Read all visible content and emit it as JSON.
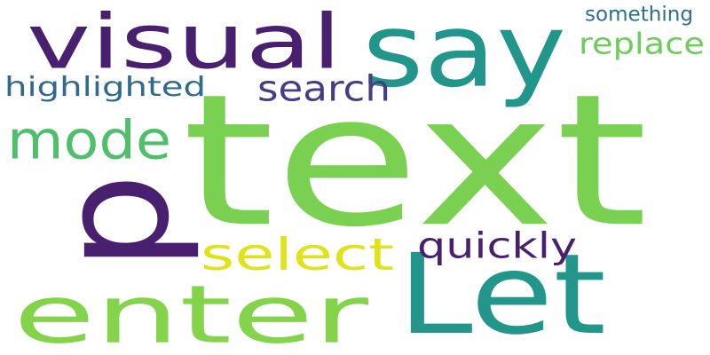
{
  "word_cloud": {
    "background": "#ffffff",
    "words": [
      {
        "text": "text",
        "color": "#7ad151"
      },
      {
        "text": "say",
        "color": "#22968b"
      },
      {
        "text": "visual",
        "color": "#48206f"
      },
      {
        "text": "p",
        "color": "#48206f"
      },
      {
        "text": "Let",
        "color": "#22968b"
      },
      {
        "text": "enter",
        "color": "#84d44b"
      },
      {
        "text": "mode",
        "color": "#4fbf6b"
      },
      {
        "text": "select",
        "color": "#dfe318"
      },
      {
        "text": "quickly",
        "color": "#48206f"
      },
      {
        "text": "search",
        "color": "#433e85"
      },
      {
        "text": "highlighted",
        "color": "#306a8e"
      },
      {
        "text": "replace",
        "color": "#6ccd5a"
      },
      {
        "text": "something",
        "color": "#2e6e8e"
      }
    ]
  }
}
